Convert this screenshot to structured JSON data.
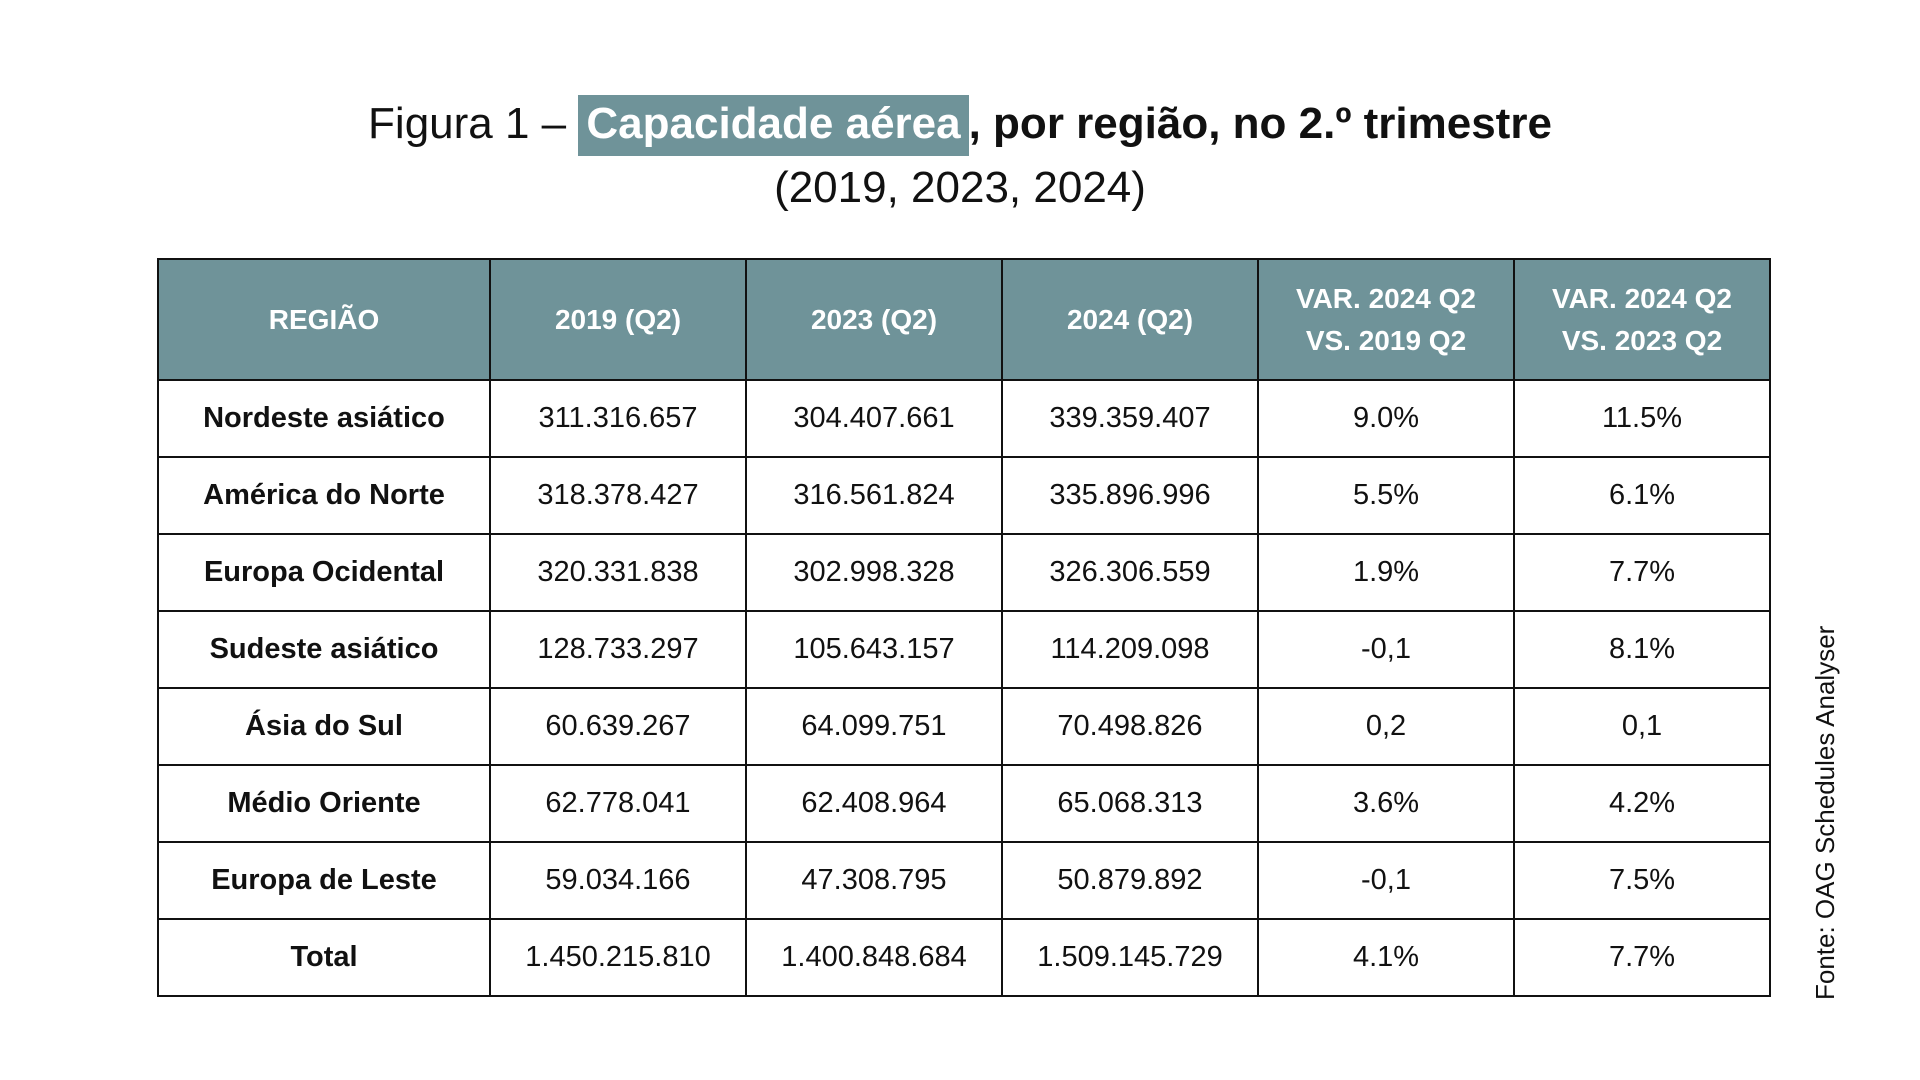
{
  "title": {
    "prefix": "Figura 1 – ",
    "highlight": "Capacidade aérea",
    "rest": ", por região, no 2.º trimestre",
    "line2": "(2019, 2023, 2024)"
  },
  "colors": {
    "header_bg": "#6f9399",
    "header_text": "#ffffff",
    "border": "#111111"
  },
  "chart_data": {
    "type": "table",
    "columns": [
      "REGIÃO",
      "2019 (Q2)",
      "2023 (Q2)",
      "2024 (Q2)",
      "VAR. 2024 Q2 VS. 2019 Q2",
      "VAR. 2024 Q2 VS. 2023 Q2"
    ],
    "rows": [
      [
        "Nordeste asiático",
        "311.316.657",
        "304.407.661",
        "339.359.407",
        "9.0%",
        "11.5%"
      ],
      [
        "América do Norte",
        "318.378.427",
        "316.561.824",
        "335.896.996",
        "5.5%",
        "6.1%"
      ],
      [
        "Europa Ocidental",
        "320.331.838",
        "302.998.328",
        "326.306.559",
        "1.9%",
        "7.7%"
      ],
      [
        "Sudeste asiático",
        "128.733.297",
        "105.643.157",
        "114.209.098",
        "-0,1",
        "8.1%"
      ],
      [
        "Ásia do Sul",
        "60.639.267",
        "64.099.751",
        "70.498.826",
        "0,2",
        "0,1"
      ],
      [
        "Médio Oriente",
        "62.778.041",
        "62.408.964",
        "65.068.313",
        "3.6%",
        "4.2%"
      ],
      [
        "Europa de Leste",
        "59.034.166",
        "47.308.795",
        "50.879.892",
        "-0,1",
        "7.5%"
      ],
      [
        "Total",
        "1.450.215.810",
        "1.400.848.684",
        "1.509.145.729",
        "4.1%",
        "7.7%"
      ]
    ]
  },
  "source": "Fonte: OAG Schedules Analyser"
}
